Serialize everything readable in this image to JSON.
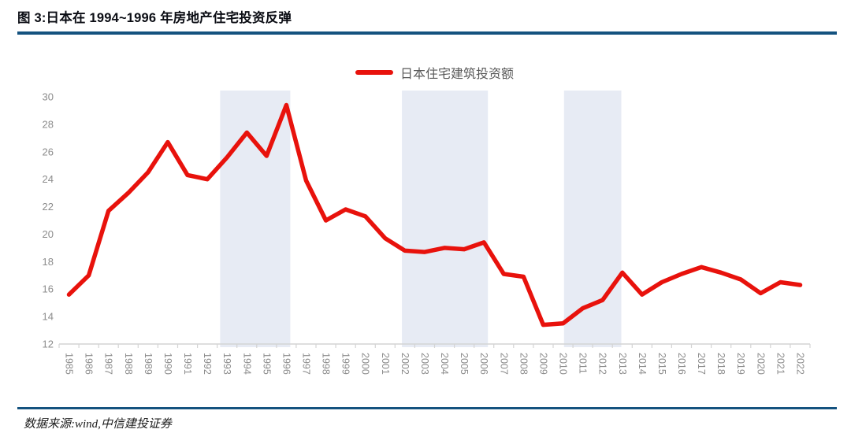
{
  "header": {
    "title": "图 3:日本在 1994~1996 年房地产住宅投资反弹"
  },
  "legend": {
    "label": "日本住宅建筑投资额"
  },
  "footer": {
    "source": "数据来源:wind,中信建投证券"
  },
  "colors": {
    "line": "#e8120c",
    "band": "#e7ebf4",
    "rule": "#14527f",
    "axis_label": "#8c8c8c",
    "axis_line": "#d4d4d4",
    "legend_text": "#595959",
    "title_text": "#0b0d14"
  },
  "chart_data": {
    "type": "line",
    "title": "日本住宅建筑投资额",
    "xlabel": "",
    "ylabel": "",
    "grid": false,
    "legend_position": "top-center",
    "ylim": [
      12,
      30
    ],
    "ytick_step": 2,
    "yticks": [
      12,
      14,
      16,
      18,
      20,
      22,
      24,
      26,
      28,
      30
    ],
    "categories": [
      "1985",
      "1986",
      "1987",
      "1988",
      "1989",
      "1990",
      "1991",
      "1992",
      "1993",
      "1994",
      "1995",
      "1996",
      "1997",
      "1998",
      "1999",
      "2000",
      "2001",
      "2002",
      "2003",
      "2004",
      "2005",
      "2006",
      "2007",
      "2008",
      "2009",
      "2010",
      "2011",
      "2012",
      "2013",
      "2014",
      "2015",
      "2016",
      "2017",
      "2018",
      "2019",
      "2020",
      "2021",
      "2022"
    ],
    "series": [
      {
        "name": "日本住宅建筑投资额",
        "color": "#e8120c",
        "values": [
          15.6,
          17.0,
          21.7,
          23.0,
          24.5,
          26.7,
          24.3,
          24.0,
          25.6,
          27.4,
          25.7,
          29.4,
          23.9,
          21.0,
          21.8,
          21.3,
          19.7,
          18.8,
          18.7,
          19.0,
          18.9,
          19.4,
          17.1,
          16.9,
          13.4,
          13.5,
          14.6,
          15.2,
          17.2,
          15.6,
          16.5,
          17.1,
          17.6,
          17.2,
          16.7,
          15.7,
          16.5,
          16.3
        ]
      }
    ],
    "highlight_bands": [
      {
        "label": "1993-1996",
        "from": 1993.15,
        "to": 1996.7
      },
      {
        "label": "2002-2006",
        "from": 2002.35,
        "to": 2006.7
      },
      {
        "label": "2011-2013",
        "from": 2010.55,
        "to": 2013.45
      }
    ]
  }
}
